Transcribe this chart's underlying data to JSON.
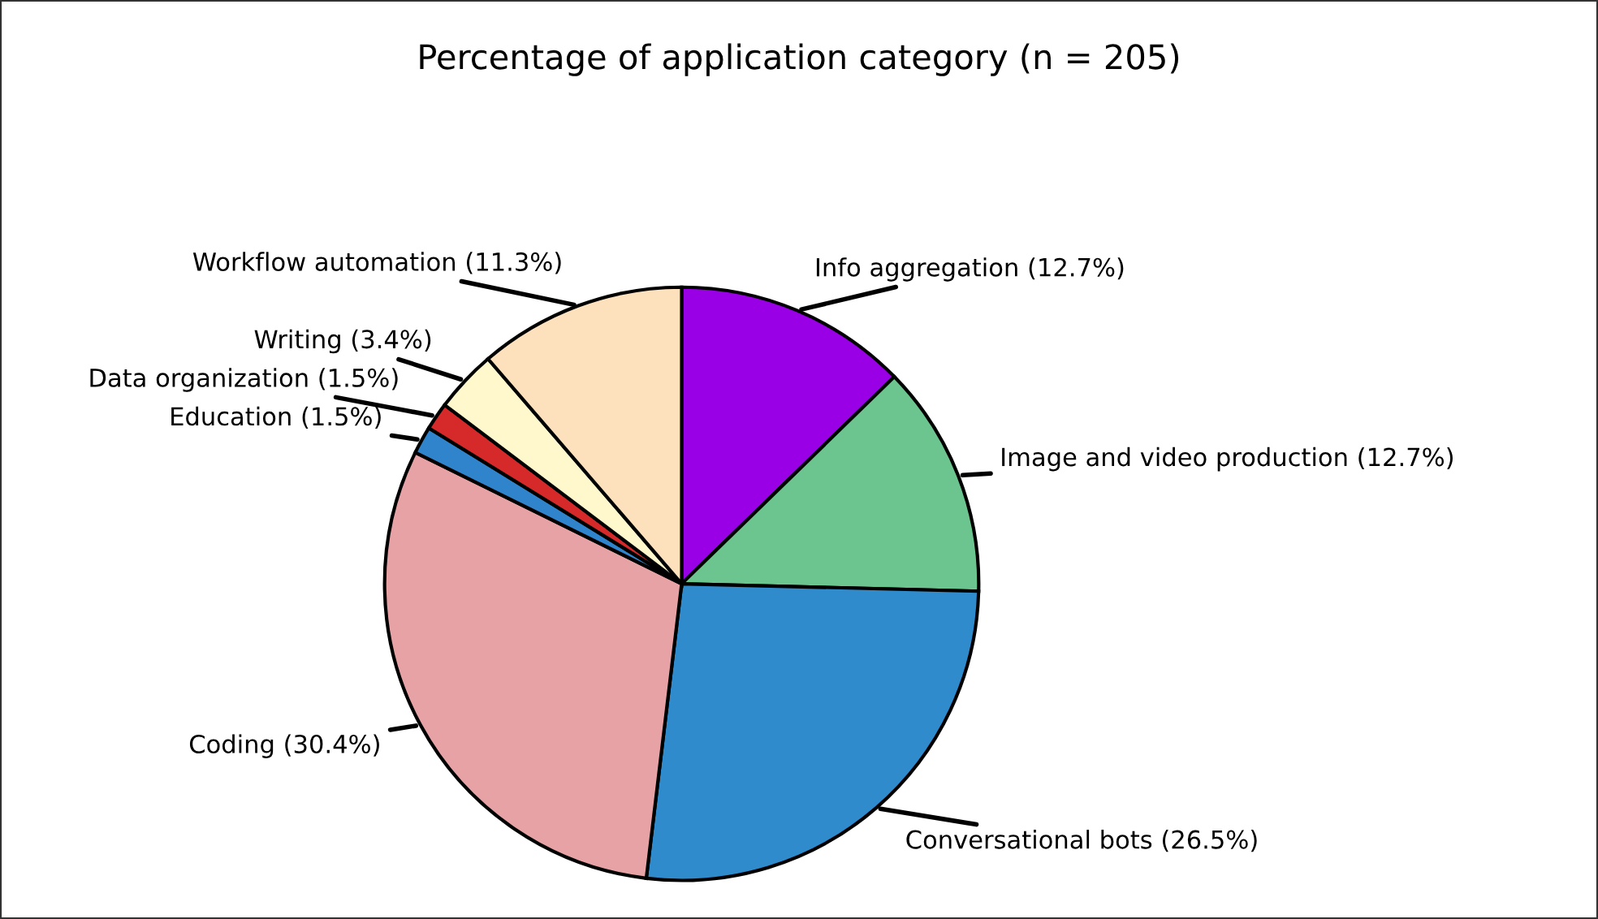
{
  "chart_data": {
    "type": "pie",
    "title": "Percentage of application category (n = 205)",
    "categories": [
      "Info aggregation (12.7%)",
      "Image and video production (12.7%)",
      "Conversational bots (26.5%)",
      "Coding (30.4%)",
      "Education (1.5%)",
      "Data organization (1.5%)",
      "Writing (3.4%)",
      "Workflow automation (11.3%)"
    ],
    "values": [
      12.7,
      12.7,
      26.5,
      30.4,
      1.5,
      1.5,
      3.4,
      11.3
    ],
    "colors": [
      "#9a00e6",
      "#6cc48f",
      "#2f8bcb",
      "#e7a2a5",
      "#2f84cc",
      "#d62a2a",
      "#fff8cc",
      "#fde1bd"
    ]
  }
}
